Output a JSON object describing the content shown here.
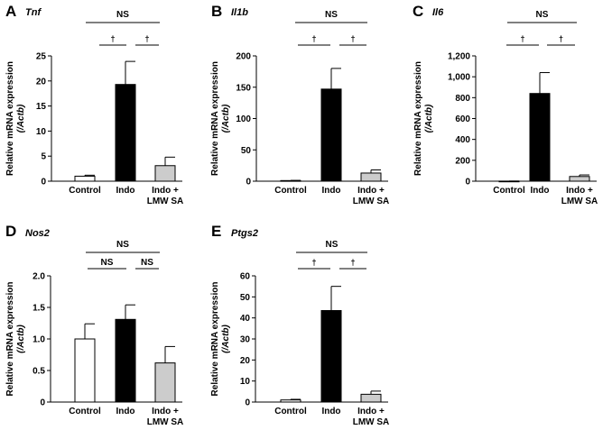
{
  "chart_data": [
    {
      "type": "bar",
      "panel_label": "A",
      "gene": "Tnf",
      "ylabel_main": "Relative mRNA expression",
      "ylabel_sub": "(/Actb)",
      "categories": [
        "Control",
        "Indo",
        "Indo +\nLMW SA"
      ],
      "values": [
        1.0,
        19.3,
        3.1
      ],
      "errors": [
        0.2,
        4.6,
        1.7
      ],
      "bar_colors": [
        "#ffffff",
        "#000000",
        "#cccccc"
      ],
      "ylim": [
        0,
        25
      ],
      "yticks": [
        "0",
        "5",
        "10",
        "15",
        "20",
        "25"
      ],
      "significance": {
        "left": "†",
        "right": "†",
        "top": "NS"
      }
    },
    {
      "type": "bar",
      "panel_label": "B",
      "gene": "Il1b",
      "ylabel_main": "Relative mRNA expression",
      "ylabel_sub": "(/Actb)",
      "categories": [
        "Control",
        "Indo",
        "Indo +\nLMW SA"
      ],
      "values": [
        1.0,
        147,
        13
      ],
      "errors": [
        0.3,
        33,
        5
      ],
      "bar_colors": [
        "#ffffff",
        "#000000",
        "#cccccc"
      ],
      "ylim": [
        0,
        200
      ],
      "yticks": [
        "0",
        "50",
        "100",
        "150",
        "200"
      ],
      "significance": {
        "left": "†",
        "right": "†",
        "top": "NS"
      }
    },
    {
      "type": "bar",
      "panel_label": "C",
      "gene": "Il6",
      "ylabel_main": "Relative mRNA expression",
      "ylabel_sub": "(/Actb)",
      "categories": [
        "Control",
        "Indo",
        "Indo +\nLMW SA"
      ],
      "values": [
        1.0,
        840,
        45
      ],
      "errors": [
        0.3,
        200,
        15
      ],
      "bar_colors": [
        "#ffffff",
        "#000000",
        "#cccccc"
      ],
      "ylim": [
        0,
        1200
      ],
      "yticks": [
        "0",
        "200",
        "400",
        "600",
        "800",
        "1,000",
        "1,200"
      ],
      "significance": {
        "left": "†",
        "right": "†",
        "top": "NS"
      }
    },
    {
      "type": "bar",
      "panel_label": "D",
      "gene": "Nos2",
      "ylabel_main": "Relative mRNA expression",
      "ylabel_sub": "(/Actb)",
      "categories": [
        "Control",
        "Indo",
        "Indo +\nLMW SA"
      ],
      "values": [
        1.0,
        1.31,
        0.62
      ],
      "errors": [
        0.24,
        0.23,
        0.26
      ],
      "bar_colors": [
        "#ffffff",
        "#000000",
        "#cccccc"
      ],
      "ylim": [
        0,
        2.0
      ],
      "yticks": [
        "0",
        "0.5",
        "1.0",
        "1.5",
        "2.0"
      ],
      "significance": {
        "left": "NS",
        "right": "NS",
        "top": "NS"
      }
    },
    {
      "type": "bar",
      "panel_label": "E",
      "gene": "Ptgs2",
      "ylabel_main": "Relative mRNA expression",
      "ylabel_sub": "(/Actb)",
      "categories": [
        "Control",
        "Indo",
        "Indo +\nLMW SA"
      ],
      "values": [
        1.0,
        43.5,
        3.7
      ],
      "errors": [
        0.3,
        11.5,
        1.5
      ],
      "bar_colors": [
        "#ffffff",
        "#000000",
        "#cccccc"
      ],
      "ylim": [
        0,
        60
      ],
      "yticks": [
        "0",
        "10",
        "20",
        "30",
        "40",
        "50",
        "60"
      ],
      "significance": {
        "left": "†",
        "right": "†",
        "top": "NS"
      }
    }
  ]
}
